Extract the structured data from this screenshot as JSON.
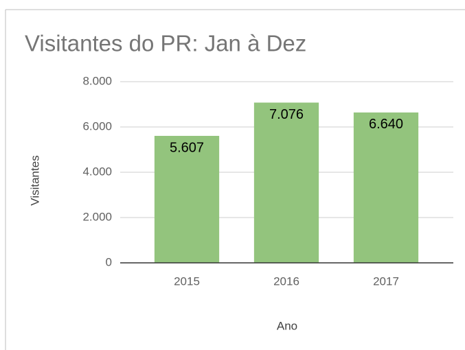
{
  "chart_data": {
    "type": "bar",
    "title": "Visitantes do PR: Jan à Dez",
    "x_label": "Ano",
    "y_label": "Visitantes",
    "categories": [
      "2015",
      "2016",
      "2017"
    ],
    "values": [
      5607,
      7076,
      6640
    ],
    "value_labels": [
      "5.607",
      "7.076",
      "6.640"
    ],
    "color": "#93c47d",
    "ylim": [
      0,
      8000
    ],
    "yticks": [
      0,
      {
        "value": 2000,
        "label": "2.000"
      },
      {
        "value": 4000,
        "label": "4.000"
      },
      {
        "value": 6000,
        "label": "6.000"
      },
      {
        "value": 8000,
        "label": "8.000"
      }
    ],
    "grid": true
  }
}
